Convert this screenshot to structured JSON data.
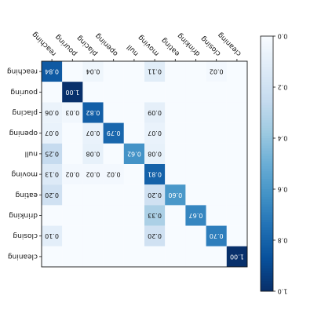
{
  "chart_data": {
    "type": "heatmap",
    "title": "",
    "xlabel": "",
    "ylabel": "",
    "orientation": "rotated 180 degrees (all text appears upside down)",
    "categories": [
      "cleaning",
      "closing",
      "drinking",
      "eating",
      "moving",
      "null",
      "opening",
      "placing",
      "pouring",
      "reaching"
    ],
    "x_tick_labels_as_shown_left_to_right": [
      "reaching",
      "pouring",
      "placing",
      "opening",
      "null",
      "moving",
      "eating",
      "drinking",
      "closing",
      "cleaning"
    ],
    "y_tick_labels_as_shown_top_to_bottom": [
      "reaching",
      "pouring",
      "placing",
      "opening",
      "null",
      "moving",
      "eating",
      "drinking",
      "closing",
      "cleaning"
    ],
    "matrix_as_shown": [
      [
        "0.84",
        "",
        "0.04",
        "",
        "",
        "0.11",
        "",
        "",
        "0.02",
        ""
      ],
      [
        "",
        "1.00",
        "",
        "",
        "",
        "",
        "",
        "",
        "",
        ""
      ],
      [
        "0.06",
        "0.03",
        "0.82",
        "",
        "",
        "0.09",
        "",
        "",
        "",
        ""
      ],
      [
        "0.07",
        "",
        "0.07",
        "0.79",
        "",
        "0.07",
        "",
        "",
        "",
        ""
      ],
      [
        "0.25",
        "",
        "0.08",
        "",
        "0.62",
        "0.08",
        "",
        "",
        "",
        ""
      ],
      [
        "0.13",
        "0.02",
        "0.02",
        "0.02",
        "",
        "0.81",
        "",
        "",
        "",
        ""
      ],
      [
        "0.20",
        "",
        "",
        "",
        "",
        "0.20",
        "0.60",
        "",
        "",
        ""
      ],
      [
        "",
        "",
        "",
        "",
        "",
        "0.33",
        "",
        "0.67",
        "",
        ""
      ],
      [
        "0.10",
        "",
        "",
        "",
        "",
        "0.20",
        "",
        "",
        "0.70",
        ""
      ],
      [
        "",
        "",
        "",
        "",
        "",
        "",
        "",
        "",
        "",
        "1.00"
      ]
    ],
    "colorbar": {
      "colormap": "Blues",
      "range": [
        0.0,
        1.0
      ],
      "tick_labels": [
        "0.0",
        "0.2",
        "0.4",
        "0.6",
        "0.8",
        "1.0"
      ]
    },
    "grid": false,
    "legend": "colorbar right"
  }
}
